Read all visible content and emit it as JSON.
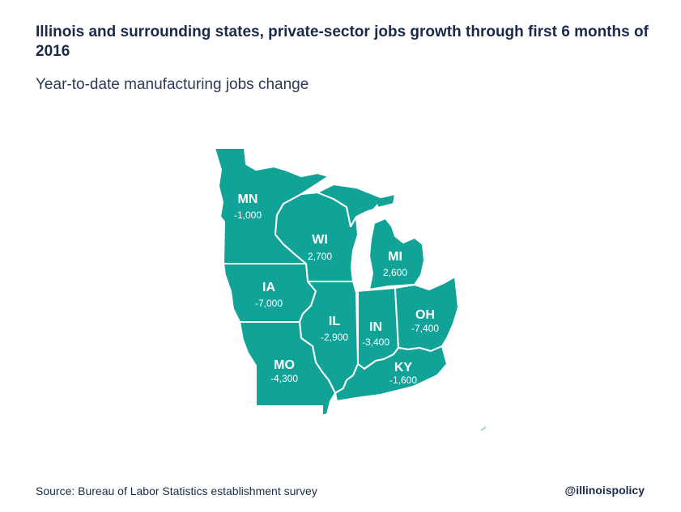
{
  "title": "Illinois and surrounding states, private-sector jobs growth through first 6 months of 2016",
  "subtitle": "Year-to-date manufacturing jobs change",
  "source": "Source: Bureau of Labor Statistics establishment survey",
  "handle": "@illinoispolicy",
  "colors": {
    "state_fill": "#11a398",
    "border": "#ffffff",
    "text": "#1b2a4a"
  },
  "states": {
    "MN": {
      "abbr": "MN",
      "value": "-1,000"
    },
    "WI": {
      "abbr": "WI",
      "value": "2,700"
    },
    "MI": {
      "abbr": "MI",
      "value": "2,600"
    },
    "IA": {
      "abbr": "IA",
      "value": "-7,000"
    },
    "IL": {
      "abbr": "IL",
      "value": "-2,900"
    },
    "IN": {
      "abbr": "IN",
      "value": "-3,400"
    },
    "OH": {
      "abbr": "OH",
      "value": "-7,400"
    },
    "MO": {
      "abbr": "MO",
      "value": "-4,300"
    },
    "KY": {
      "abbr": "KY",
      "value": "-1,600"
    }
  }
}
